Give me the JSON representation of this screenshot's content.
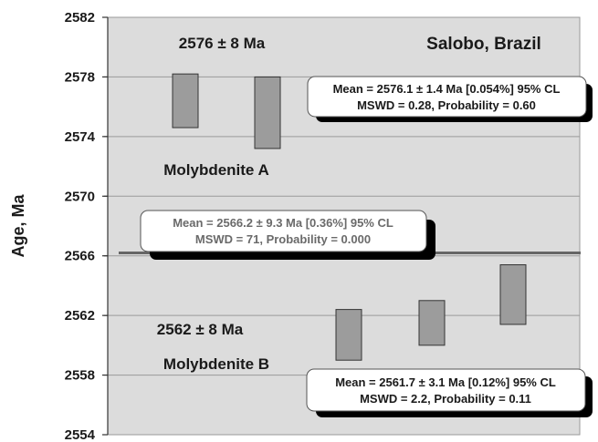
{
  "chart_data": {
    "type": "error-bar",
    "title": "Salobo, Brazil",
    "ylabel": "Age, Ma",
    "ylim": [
      2554,
      2582
    ],
    "yticks": [
      2554,
      2558,
      2562,
      2566,
      2570,
      2574,
      2578,
      2582
    ],
    "grid": true,
    "series": [
      {
        "name": "Molybdenite A",
        "label": "Molybdenite A",
        "age_label": "2576 ± 8 Ma",
        "points": [
          {
            "low": 2574.6,
            "high": 2578.2
          },
          {
            "low": 2573.2,
            "high": 2578.0
          }
        ],
        "mean_box": {
          "line1": "Mean = 2576.1 ± 1.4 Ma [0.054%]  95% CL",
          "line2": "MSWD = 0.28, Probability = 0.60"
        }
      },
      {
        "name": "Molybdenite B",
        "label": "Molybdenite B",
        "age_label": "2562 ± 8 Ma",
        "points": [
          {
            "low": 2559.0,
            "high": 2562.4
          },
          {
            "low": 2560.0,
            "high": 2563.0
          },
          {
            "low": 2561.4,
            "high": 2565.4
          }
        ],
        "mean_box": {
          "line1": "Mean = 2561.7 ± 3.1 Ma [0.12%]  95% CL",
          "line2": "MSWD = 2.2, Probability = 0.11"
        }
      }
    ],
    "overall_mean": {
      "value": 2566.2,
      "line1": "Mean = 2566.2 ± 9.3 Ma [0.36%]  95% CL",
      "line2": "MSWD = 71, Probability = 0.000"
    }
  }
}
